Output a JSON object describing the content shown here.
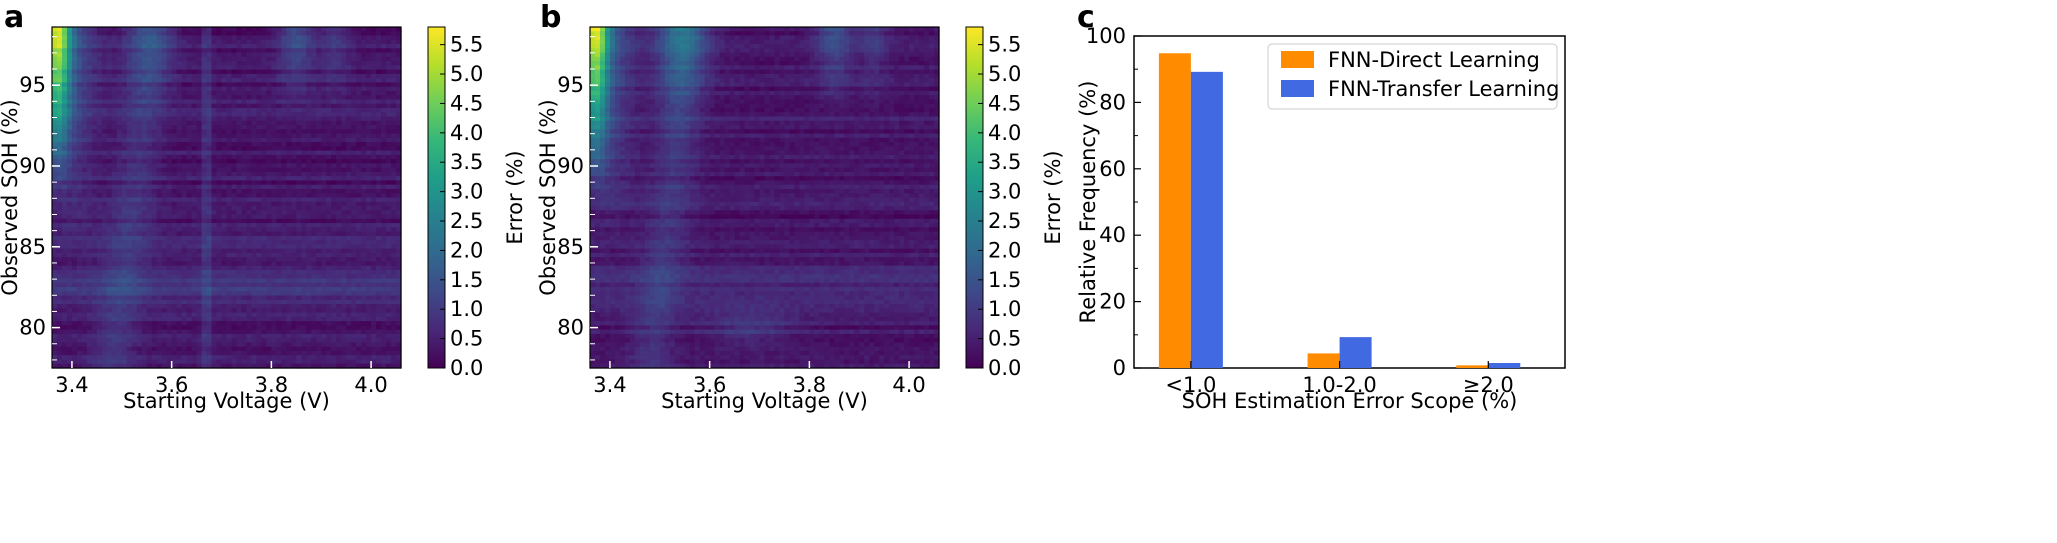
{
  "panels": {
    "a": "a",
    "b": "b",
    "c": "c"
  },
  "colors": {
    "orange": "#FF8C00",
    "blue": "#4169E1",
    "viridis": [
      "#440154",
      "#482878",
      "#3E4989",
      "#31688E",
      "#26828E",
      "#1F9E89",
      "#35B779",
      "#6ECE58",
      "#B5DE2B",
      "#FDE725"
    ]
  },
  "chart_data": [
    {
      "type": "heatmap",
      "panel": "a",
      "title": "",
      "xlabel": "Starting Voltage (V)",
      "ylabel": "Observed SOH (%)",
      "xlim": [
        3.36,
        4.06
      ],
      "ylim": [
        77.5,
        98.6
      ],
      "xticks": [
        "3.4",
        "3.6",
        "3.8",
        "4.0"
      ],
      "yticks": [
        "80",
        "85",
        "90",
        "95"
      ],
      "colorbar": {
        "label": "Error (%)",
        "range": [
          0.0,
          5.8
        ],
        "ticks": [
          "0.0",
          "0.5",
          "1.0",
          "1.5",
          "2.0",
          "2.5",
          "3.0",
          "3.5",
          "4.0",
          "4.5",
          "5.0",
          "5.5"
        ]
      },
      "value_range_shown": [
        0.0,
        5.8
      ]
    },
    {
      "type": "heatmap",
      "panel": "b",
      "title": "",
      "xlabel": "Starting Voltage (V)",
      "ylabel": "Observed SOH (%)",
      "xlim": [
        3.36,
        4.06
      ],
      "ylim": [
        77.5,
        98.6
      ],
      "xticks": [
        "3.4",
        "3.6",
        "3.8",
        "4.0"
      ],
      "yticks": [
        "80",
        "85",
        "90",
        "95"
      ],
      "colorbar": {
        "label": "Error (%)",
        "range": [
          0.0,
          5.8
        ],
        "ticks": [
          "0.0",
          "0.5",
          "1.0",
          "1.5",
          "2.0",
          "2.5",
          "3.0",
          "3.5",
          "4.0",
          "4.5",
          "5.0",
          "5.5"
        ]
      },
      "value_range_shown": [
        0.0,
        5.8
      ]
    },
    {
      "type": "bar",
      "panel": "c",
      "title": "",
      "xlabel": "SOH Estimation Error Scope (%)",
      "ylabel": "Relative Frequency (%)",
      "categories": [
        "<1.0",
        "1.0-2.0",
        "≥2.0"
      ],
      "ylim": [
        0,
        100
      ],
      "yticks": [
        "0",
        "20",
        "40",
        "60",
        "80",
        "100"
      ],
      "legend_position": "top-right",
      "series": [
        {
          "name": "FNN-Direct Learning",
          "color": "#FF8C00",
          "values": [
            94.8,
            4.4,
            0.8
          ]
        },
        {
          "name": "FNN-Transfer Learning",
          "color": "#4169E1",
          "values": [
            89.2,
            9.3,
            1.5
          ]
        }
      ]
    }
  ]
}
